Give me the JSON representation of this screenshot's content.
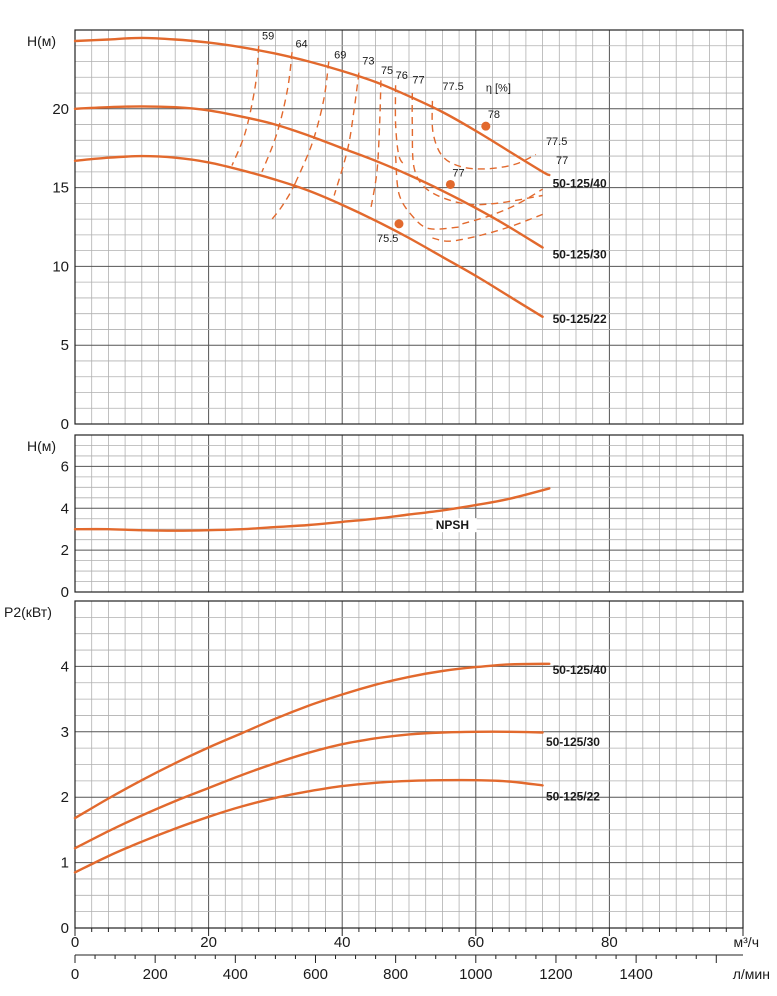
{
  "colors": {
    "curve": "#e2692d",
    "grid_major": "#555555",
    "grid_minor": "#b0b0b0",
    "frame": "#222222"
  },
  "x_axis": {
    "unit_m3h": "м³/ч",
    "unit_lmin": "л/мин",
    "ticks_m3h": [
      "0",
      "20",
      "40",
      "60",
      "80"
    ],
    "ticks_lmin": [
      "0",
      "200",
      "400",
      "600",
      "800",
      "1000",
      "1200",
      "1400"
    ]
  },
  "chart_data": [
    {
      "type": "line",
      "ylabel": "H(м)",
      "xlim": [
        0,
        100
      ],
      "ylim": [
        0,
        25
      ],
      "yticks": [
        "0",
        "5",
        "10",
        "15",
        "20"
      ],
      "series": [
        {
          "name": "50-125/40",
          "x": [
            0,
            5,
            10,
            15,
            20,
            25,
            30,
            35,
            40,
            45,
            50,
            55,
            60,
            65,
            70,
            71
          ],
          "y": [
            24.3,
            24.4,
            24.5,
            24.4,
            24.2,
            23.9,
            23.5,
            23.0,
            22.4,
            21.7,
            20.8,
            19.8,
            18.6,
            17.3,
            16.0,
            15.8
          ]
        },
        {
          "name": "50-125/30",
          "x": [
            0,
            5,
            10,
            15,
            20,
            25,
            30,
            35,
            40,
            45,
            50,
            55,
            60,
            65,
            70
          ],
          "y": [
            20.0,
            20.1,
            20.15,
            20.1,
            19.9,
            19.5,
            19.0,
            18.3,
            17.5,
            16.7,
            15.8,
            14.8,
            13.7,
            12.5,
            11.2
          ]
        },
        {
          "name": "50-125/22",
          "x": [
            0,
            5,
            10,
            15,
            20,
            25,
            30,
            35,
            40,
            45,
            50,
            55,
            60,
            65,
            70
          ],
          "y": [
            16.7,
            16.9,
            17.0,
            16.9,
            16.6,
            16.1,
            15.5,
            14.8,
            13.9,
            12.9,
            11.8,
            10.6,
            9.4,
            8.1,
            6.8
          ]
        }
      ],
      "bep_points": [
        {
          "label": "78",
          "x": 61.5,
          "y": 18.9
        },
        {
          "label": "77",
          "x": 56.2,
          "y": 15.2
        },
        {
          "label": "75.5",
          "x": 48.5,
          "y": 12.7
        }
      ],
      "efficiency_label": "η [%]",
      "efficiency_contours": [
        {
          "label": "59",
          "x": [
            27.5,
            27.0,
            25.5,
            23.5
          ],
          "y": [
            24.0,
            21.5,
            18.5,
            16.4
          ]
        },
        {
          "label": "64",
          "x": [
            32.5,
            31.8,
            30.2,
            28.0
          ],
          "y": [
            23.6,
            21.2,
            18.4,
            16.0
          ]
        },
        {
          "label": "69",
          "x": [
            38.0,
            37.2,
            35.5,
            33.0
          ],
          "y": [
            23.0,
            20.5,
            17.8,
            15.3
          ]
        },
        {
          "label": "69",
          "x": [
            33.0,
            32.0,
            30.8,
            29.5
          ],
          "y": [
            15.3,
            14.5,
            13.7,
            13.0
          ]
        },
        {
          "label": "73",
          "x": [
            42.5,
            41.8,
            40.8,
            38.8
          ],
          "y": [
            22.3,
            20.0,
            17.4,
            14.5
          ]
        },
        {
          "label": "75",
          "x": [
            45.8,
            45.6,
            45.2,
            44.2
          ],
          "y": [
            21.8,
            19.0,
            16.0,
            13.5
          ]
        },
        {
          "label": "76",
          "x": [
            48.0,
            48.0,
            48.5,
            49.5
          ],
          "y": [
            21.5,
            19.0,
            17.0,
            16.4
          ]
        },
        {
          "label": "77",
          "x": [
            50.5,
            50.5,
            50.8,
            53.0,
            58.0,
            63.0,
            70.0
          ],
          "y": [
            21.0,
            19.0,
            16.2,
            14.8,
            14.0,
            14.0,
            14.5
          ]
        },
        {
          "label": "77",
          "x": [
            48.0,
            48.5,
            50.5,
            53.0,
            57.5
          ],
          "y": [
            17.0,
            14.6,
            13.2,
            12.4,
            12.5
          ]
        },
        {
          "label": "77.5",
          "x": [
            53.5,
            53.6,
            55.0,
            58.0,
            62.0,
            66.0,
            69.0
          ],
          "y": [
            20.5,
            18.5,
            17.0,
            16.3,
            16.2,
            16.5,
            17.1
          ]
        },
        {
          "label": "77.5",
          "x": [
            53.5,
            56.0,
            60.0,
            65.0,
            70.0
          ],
          "y": [
            11.8,
            11.6,
            11.9,
            12.5,
            13.3
          ]
        },
        {
          "label": "77.5",
          "x": [
            58.0,
            62.0,
            66.0,
            70.0
          ],
          "y": [
            12.7,
            13.2,
            13.9,
            14.9
          ]
        }
      ],
      "eta_tick_labels": [
        {
          "label": "59",
          "x": 28.0,
          "y": 24.4
        },
        {
          "label": "64",
          "x": 33.0,
          "y": 23.9
        },
        {
          "label": "69",
          "x": 38.8,
          "y": 23.2
        },
        {
          "label": "73",
          "x": 43.0,
          "y": 22.8
        },
        {
          "label": "75",
          "x": 45.8,
          "y": 22.2
        },
        {
          "label": "76",
          "x": 48.0,
          "y": 21.9
        },
        {
          "label": "77",
          "x": 50.5,
          "y": 21.6
        },
        {
          "label": "77.5",
          "x": 55.0,
          "y": 21.2
        },
        {
          "label": "77.5",
          "x": 70.5,
          "y": 17.7
        },
        {
          "label": "77",
          "x": 72.0,
          "y": 16.5
        }
      ],
      "series_labels": [
        {
          "text": "50-125/40",
          "x": 71.5,
          "y": 15.0
        },
        {
          "text": "50-125/30",
          "x": 71.5,
          "y": 10.5
        },
        {
          "text": "50-125/22",
          "x": 71.5,
          "y": 6.4
        }
      ]
    },
    {
      "type": "line",
      "ylabel": "H(м)",
      "xlim": [
        0,
        100
      ],
      "ylim": [
        0,
        7.5
      ],
      "yticks": [
        "0",
        "2",
        "4",
        "6"
      ],
      "series": [
        {
          "name": "NPSH",
          "x": [
            0,
            5,
            10,
            15,
            20,
            25,
            30,
            35,
            40,
            45,
            50,
            55,
            60,
            65,
            71
          ],
          "y": [
            3.0,
            3.0,
            2.95,
            2.93,
            2.95,
            3.0,
            3.1,
            3.2,
            3.35,
            3.5,
            3.7,
            3.9,
            4.15,
            4.45,
            4.95
          ]
        }
      ],
      "series_labels": [
        {
          "text": "NPSH",
          "x": 54.0,
          "y": 3.0
        }
      ]
    },
    {
      "type": "line",
      "ylabel": "P2(кВт)",
      "xlim": [
        0,
        100
      ],
      "ylim": [
        0,
        5
      ],
      "yticks": [
        "0",
        "1",
        "2",
        "3",
        "4"
      ],
      "series": [
        {
          "name": "50-125/40",
          "x": [
            0,
            5,
            10,
            15,
            20,
            25,
            30,
            35,
            40,
            45,
            50,
            55,
            60,
            65,
            71
          ],
          "y": [
            1.68,
            1.98,
            2.26,
            2.52,
            2.76,
            2.98,
            3.2,
            3.4,
            3.57,
            3.72,
            3.84,
            3.93,
            3.99,
            4.03,
            4.04
          ]
        },
        {
          "name": "50-125/30",
          "x": [
            0,
            5,
            10,
            15,
            20,
            25,
            30,
            35,
            40,
            45,
            50,
            55,
            60,
            65,
            70
          ],
          "y": [
            1.22,
            1.48,
            1.72,
            1.94,
            2.14,
            2.34,
            2.52,
            2.68,
            2.81,
            2.9,
            2.96,
            2.99,
            3.0,
            3.0,
            2.99
          ]
        },
        {
          "name": "50-125/22",
          "x": [
            0,
            5,
            10,
            15,
            20,
            25,
            30,
            35,
            40,
            45,
            50,
            55,
            60,
            65,
            70
          ],
          "y": [
            0.85,
            1.1,
            1.32,
            1.52,
            1.7,
            1.86,
            1.99,
            2.09,
            2.17,
            2.22,
            2.25,
            2.26,
            2.26,
            2.24,
            2.18
          ]
        }
      ],
      "series_labels": [
        {
          "text": "50-125/40",
          "x": 71.5,
          "y": 3.88
        },
        {
          "text": "50-125/30",
          "x": 70.5,
          "y": 2.78
        },
        {
          "text": "50-125/22",
          "x": 70.5,
          "y": 1.95
        }
      ]
    }
  ]
}
